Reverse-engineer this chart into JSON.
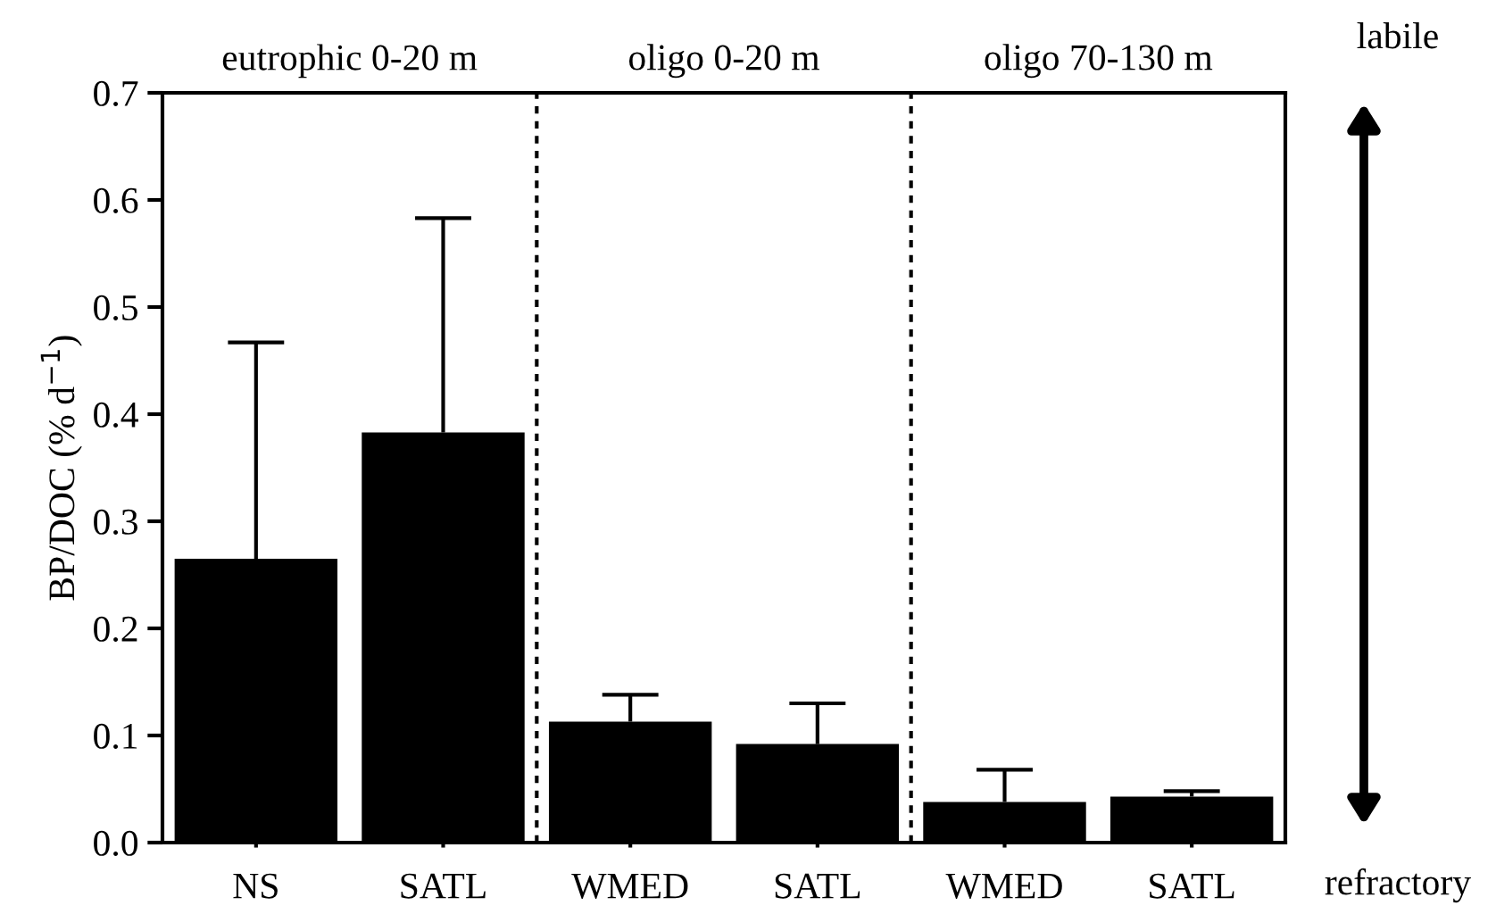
{
  "chart_data": {
    "type": "bar",
    "ylabel": "BP/DOC (% d$^{−1}$)",
    "categories": [
      "NS",
      "SATL",
      "WMED",
      "SATL",
      "WMED",
      "SATL"
    ],
    "values": [
      0.265,
      0.383,
      0.113,
      0.092,
      0.038,
      0.043
    ],
    "errors": [
      [
        0.265,
        0.467
      ],
      [
        0.383,
        0.583
      ],
      [
        0.113,
        0.138
      ],
      [
        0.092,
        0.13
      ],
      [
        0.038,
        0.068
      ],
      [
        0.043,
        0.048
      ]
    ],
    "color": "#000000",
    "ylim": [
      0,
      0.7
    ],
    "yticks": [
      {
        "value": 0,
        "label": "0.0"
      },
      0.1,
      0.2,
      0.3,
      0.4,
      0.5,
      0.6,
      0.7
    ],
    "annotations": [
      "eutrophic 0-20 m",
      "oligo 0-20 m",
      "oligo 70-130 m",
      "labile",
      "refractory"
    ],
    "grid": false
  }
}
